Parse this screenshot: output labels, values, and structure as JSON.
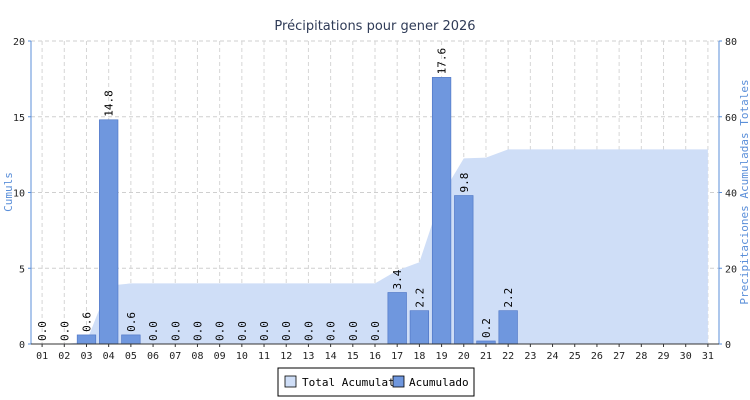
{
  "chart_data": {
    "type": "bar",
    "title": "Précipitations pour gener 2026",
    "ylabel": "Cumuls",
    "y2label": "Precipitaciones Acumuladas Totales",
    "ylim": [
      0,
      20
    ],
    "yticks": [
      "0",
      "5",
      "10",
      "15",
      "20"
    ],
    "y2lim": [
      0,
      80
    ],
    "y2ticks": [
      "0",
      "20",
      "40",
      "60",
      "80"
    ],
    "grid": true,
    "legend_placement": "bottom-center",
    "categories": [
      "01",
      "02",
      "03",
      "04",
      "05",
      "06",
      "07",
      "08",
      "09",
      "10",
      "11",
      "12",
      "13",
      "14",
      "15",
      "16",
      "17",
      "18",
      "19",
      "20",
      "21",
      "22",
      "23",
      "24",
      "25",
      "26",
      "27",
      "28",
      "29",
      "30",
      "31"
    ],
    "series": [
      {
        "name": "Acumulado",
        "kind": "bar",
        "axis": "left",
        "color": "#6f97de",
        "values": [
          0.0,
          0.0,
          0.6,
          14.8,
          0.6,
          0.0,
          0.0,
          0.0,
          0.0,
          0.0,
          0.0,
          0.0,
          0.0,
          0.0,
          0.0,
          0.0,
          3.4,
          2.2,
          17.6,
          9.8,
          0.2,
          2.2,
          null,
          null,
          null,
          null,
          null,
          null,
          null,
          null,
          null
        ],
        "labels": [
          "0.0",
          "0.0",
          "0.6",
          "14.8",
          "0.6",
          "0.0",
          "0.0",
          "0.0",
          "0.0",
          "0.0",
          "0.0",
          "0.0",
          "0.0",
          "0.0",
          "0.0",
          "0.0",
          "3.4",
          "2.2",
          "17.6",
          "9.8",
          "0.2",
          "2.2",
          "",
          "",
          "",
          "",
          "",
          "",
          "",
          "",
          ""
        ]
      },
      {
        "name": "Total Acumulat",
        "kind": "area",
        "axis": "right",
        "color": "#cfdef7",
        "values": [
          0.0,
          0.0,
          0.6,
          15.4,
          16.0,
          16.0,
          16.0,
          16.0,
          16.0,
          16.0,
          16.0,
          16.0,
          16.0,
          16.0,
          16.0,
          16.0,
          19.4,
          21.6,
          39.2,
          49.0,
          49.2,
          51.4,
          51.4,
          51.4,
          51.4,
          51.4,
          51.4,
          51.4,
          51.4,
          51.4,
          51.4
        ]
      }
    ]
  }
}
